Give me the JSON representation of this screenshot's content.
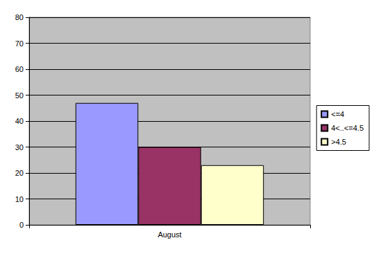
{
  "chart_data": {
    "type": "bar",
    "categories": [
      "August"
    ],
    "series": [
      {
        "name": "<=4",
        "color": "#9999ff",
        "values": [
          47
        ]
      },
      {
        "name": "4<..<=4.5",
        "color": "#993366",
        "values": [
          30
        ]
      },
      {
        "name": ">4.5",
        "color": "#ffffcc",
        "values": [
          23
        ]
      }
    ],
    "ylim": [
      0,
      80
    ],
    "yticks": [
      0,
      10,
      20,
      30,
      40,
      50,
      60,
      70,
      80
    ],
    "grid": true,
    "legend": "right"
  }
}
